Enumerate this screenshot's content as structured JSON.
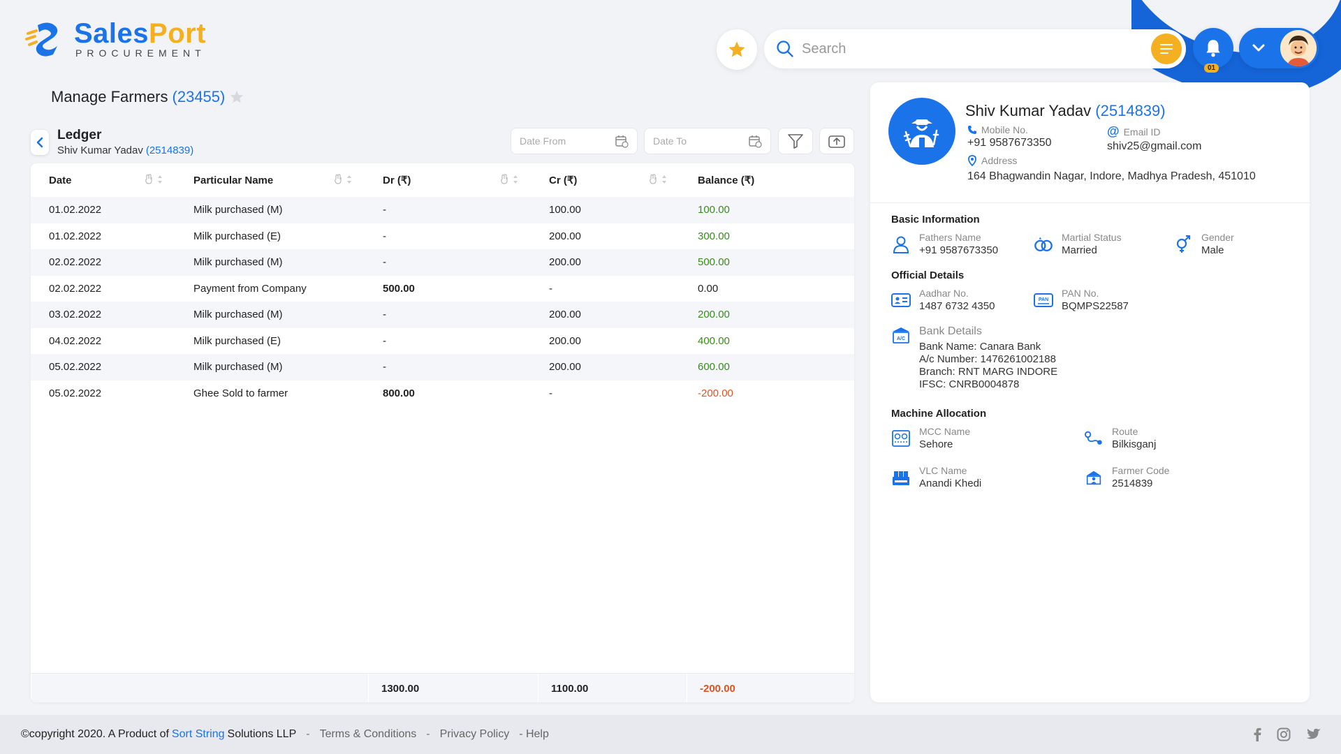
{
  "brand": {
    "name_part1": "Sales",
    "name_part2": "Port",
    "subtitle": "PROCUREMENT"
  },
  "header": {
    "search_placeholder": "Search",
    "notifications_count": "01"
  },
  "page": {
    "title": "Manage Farmers",
    "count": "(23455)"
  },
  "ledger": {
    "title": "Ledger",
    "farmer_name": "Shiv Kumar Yadav",
    "farmer_code": "(2514839)",
    "date_from_placeholder": "Date From",
    "date_to_placeholder": "Date To"
  },
  "table": {
    "headers": [
      "Date",
      "Particular Name",
      "Dr (₹)",
      "Cr (₹)",
      "Balance (₹)"
    ],
    "rows": [
      {
        "date": "01.02.2022",
        "particular": "Milk purchased (M)",
        "dr": "-",
        "cr": "100.00",
        "balance": "100.00",
        "balance_type": "pos"
      },
      {
        "date": "01.02.2022",
        "particular": "Milk purchased (E)",
        "dr": "-",
        "cr": "200.00",
        "balance": "300.00",
        "balance_type": "pos"
      },
      {
        "date": "02.02.2022",
        "particular": "Milk purchased (M)",
        "dr": "-",
        "cr": "200.00",
        "balance": "500.00",
        "balance_type": "pos"
      },
      {
        "date": "02.02.2022",
        "particular": "Payment from Company",
        "dr": "500.00",
        "cr": "-",
        "balance": "0.00",
        "balance_type": "zero"
      },
      {
        "date": "03.02.2022",
        "particular": "Milk purchased (M)",
        "dr": "-",
        "cr": "200.00",
        "balance": "200.00",
        "balance_type": "pos"
      },
      {
        "date": "04.02.2022",
        "particular": "Milk purchased (E)",
        "dr": "-",
        "cr": "200.00",
        "balance": "400.00",
        "balance_type": "pos"
      },
      {
        "date": "05.02.2022",
        "particular": "Milk purchased (M)",
        "dr": "-",
        "cr": "200.00",
        "balance": "600.00",
        "balance_type": "pos"
      },
      {
        "date": "05.02.2022",
        "particular": "Ghee Sold to farmer",
        "dr": "800.00",
        "cr": "-",
        "balance": "-200.00",
        "balance_type": "neg"
      }
    ],
    "totals": {
      "dr": "1300.00",
      "cr": "1100.00",
      "balance": "-200.00"
    }
  },
  "profile": {
    "name": "Shiv Kumar Yadav",
    "code": "(2514839)",
    "mobile_label": "Mobile No.",
    "mobile": "+91 9587673350",
    "email_label": "Email ID",
    "email": "shiv25@gmail.com",
    "address_label": "Address",
    "address": "164 Bhagwandin Nagar, Indore, Madhya Pradesh, 451010",
    "basic_title": "Basic Information",
    "fathers_label": "Fathers Name",
    "fathers": "+91 9587673350",
    "marital_label": "Martial Status",
    "marital": "Married",
    "gender_label": "Gender",
    "gender": "Male",
    "official_title": "Official Details",
    "aadhar_label": "Aadhar No.",
    "aadhar": "1487 6732 4350",
    "pan_label": "PAN No.",
    "pan": "BQMPS22587",
    "bank_label": "Bank Details",
    "bank_name": "Bank Name: Canara Bank",
    "bank_ac": "A/c Number: 1476261002188",
    "bank_branch": "Branch: RNT MARG INDORE",
    "bank_ifsc": "IFSC: CNRB0004878",
    "machine_title": "Machine Allocation",
    "mcc_label": "MCC Name",
    "mcc": "Sehore",
    "route_label": "Route",
    "route": "Bilkisganj",
    "vlc_label": "VLC Name",
    "vlc": "Anandi Khedi",
    "farmer_code_label": "Farmer Code",
    "farmer_code": "2514839"
  },
  "footer": {
    "copyright": "©copyright 2020. A Product of",
    "company_blue": "Sort String",
    "company_rest": "Solutions LLP",
    "terms": "Terms & Conditions",
    "privacy": "Privacy Policy",
    "help": "- Help"
  },
  "colors": {
    "primary": "#1a73e8",
    "accent": "#f5b021",
    "positive": "#3a8a1a",
    "negative": "#e0531f"
  }
}
